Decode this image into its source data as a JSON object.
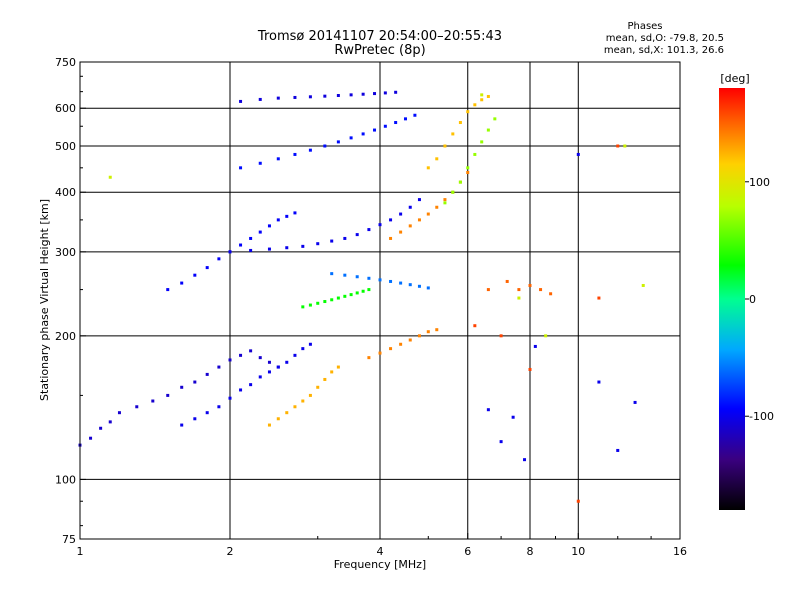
{
  "chart_data": {
    "type": "scatter",
    "title": "Tromsø 20141107 20:54:00–20:55:43",
    "subtitle": "RwPretec (8p)",
    "xlabel": "Frequency [MHz]",
    "ylabel": "Stationary phase Virtual Height [km]",
    "x_scale": "log",
    "y_scale": "log",
    "xlim": [
      1,
      16
    ],
    "ylim": [
      75,
      750
    ],
    "x_ticks": [
      1,
      2,
      4,
      6,
      8,
      10,
      16
    ],
    "y_ticks": [
      75,
      100,
      200,
      300,
      400,
      500,
      600,
      750
    ],
    "x_grid": [
      2,
      4,
      6,
      8,
      10
    ],
    "y_grid": [
      100,
      200,
      300,
      400,
      500,
      600
    ],
    "grid": true,
    "stats": {
      "heading": "Phases",
      "line1": "mean, sd,O: -79.8, 20.5",
      "line2": "mean, sd,X: 101.3, 26.6"
    },
    "colorbar": {
      "label": "[deg]",
      "range": [
        -180,
        180
      ],
      "ticks": [
        100,
        0,
        -100
      ],
      "colormap": "rainbow"
    },
    "series": [
      {
        "phase": -110,
        "points": [
          [
            1.0,
            118
          ],
          [
            1.05,
            122
          ],
          [
            1.1,
            128
          ],
          [
            1.15,
            132
          ],
          [
            1.2,
            138
          ],
          [
            1.3,
            142
          ],
          [
            1.4,
            146
          ],
          [
            1.5,
            150
          ],
          [
            1.6,
            156
          ],
          [
            1.7,
            160
          ],
          [
            1.8,
            166
          ],
          [
            1.9,
            172
          ],
          [
            2.0,
            178
          ],
          [
            2.1,
            182
          ],
          [
            2.2,
            186
          ],
          [
            2.3,
            180
          ],
          [
            2.4,
            176
          ],
          [
            2.5,
            172
          ]
        ]
      },
      {
        "phase": -100,
        "points": [
          [
            1.6,
            130
          ],
          [
            1.7,
            134
          ],
          [
            1.8,
            138
          ],
          [
            1.9,
            142
          ],
          [
            2.0,
            148
          ],
          [
            2.1,
            154
          ],
          [
            2.2,
            158
          ],
          [
            2.3,
            164
          ],
          [
            2.4,
            168
          ],
          [
            2.5,
            172
          ],
          [
            2.6,
            176
          ],
          [
            2.7,
            182
          ],
          [
            2.8,
            188
          ],
          [
            2.9,
            192
          ]
        ]
      },
      {
        "phase": -95,
        "points": [
          [
            1.5,
            250
          ],
          [
            1.6,
            258
          ],
          [
            1.7,
            268
          ],
          [
            1.8,
            278
          ],
          [
            1.9,
            290
          ],
          [
            2.0,
            300
          ],
          [
            2.1,
            310
          ],
          [
            2.2,
            320
          ],
          [
            2.3,
            330
          ],
          [
            2.4,
            340
          ],
          [
            2.5,
            350
          ],
          [
            2.6,
            356
          ],
          [
            2.7,
            362
          ]
        ]
      },
      {
        "phase": -100,
        "points": [
          [
            2.0,
            300
          ],
          [
            2.2,
            302
          ],
          [
            2.4,
            304
          ],
          [
            2.6,
            306
          ],
          [
            2.8,
            308
          ],
          [
            3.0,
            312
          ],
          [
            3.2,
            316
          ],
          [
            3.4,
            320
          ],
          [
            3.6,
            326
          ],
          [
            3.8,
            334
          ],
          [
            4.0,
            342
          ],
          [
            4.2,
            350
          ],
          [
            4.4,
            360
          ],
          [
            4.6,
            372
          ],
          [
            4.8,
            386
          ]
        ]
      },
      {
        "phase": -90,
        "points": [
          [
            2.1,
            450
          ],
          [
            2.3,
            460
          ],
          [
            2.5,
            470
          ],
          [
            2.7,
            480
          ],
          [
            2.9,
            490
          ],
          [
            3.1,
            500
          ],
          [
            3.3,
            510
          ],
          [
            3.5,
            520
          ],
          [
            3.7,
            530
          ],
          [
            3.9,
            540
          ],
          [
            4.1,
            550
          ],
          [
            4.3,
            560
          ],
          [
            4.5,
            570
          ],
          [
            4.7,
            580
          ]
        ]
      },
      {
        "phase": -105,
        "points": [
          [
            2.1,
            620
          ],
          [
            2.3,
            626
          ],
          [
            2.5,
            630
          ],
          [
            2.7,
            632
          ],
          [
            2.9,
            634
          ],
          [
            3.1,
            636
          ],
          [
            3.3,
            638
          ],
          [
            3.5,
            640
          ],
          [
            3.7,
            642
          ],
          [
            3.9,
            644
          ],
          [
            4.1,
            646
          ],
          [
            4.3,
            648
          ]
        ]
      },
      {
        "phase": -60,
        "points": [
          [
            3.2,
            270
          ],
          [
            3.4,
            268
          ],
          [
            3.6,
            266
          ],
          [
            3.8,
            264
          ],
          [
            4.0,
            262
          ],
          [
            4.2,
            260
          ],
          [
            4.4,
            258
          ],
          [
            4.6,
            256
          ],
          [
            4.8,
            254
          ],
          [
            5.0,
            252
          ]
        ]
      },
      {
        "phase": 30,
        "points": [
          [
            2.8,
            230
          ],
          [
            2.9,
            232
          ],
          [
            3.0,
            234
          ],
          [
            3.1,
            236
          ],
          [
            3.2,
            238
          ],
          [
            3.3,
            240
          ],
          [
            3.4,
            242
          ],
          [
            3.5,
            244
          ],
          [
            3.6,
            246
          ],
          [
            3.7,
            248
          ],
          [
            3.8,
            250
          ]
        ]
      },
      {
        "phase": 125,
        "points": [
          [
            2.4,
            130
          ],
          [
            2.5,
            134
          ],
          [
            2.6,
            138
          ],
          [
            2.7,
            142
          ],
          [
            2.8,
            146
          ],
          [
            2.9,
            150
          ],
          [
            3.0,
            156
          ],
          [
            3.1,
            162
          ],
          [
            3.2,
            168
          ],
          [
            3.3,
            172
          ]
        ]
      },
      {
        "phase": 140,
        "points": [
          [
            3.8,
            180
          ],
          [
            4.0,
            184
          ],
          [
            4.2,
            188
          ],
          [
            4.4,
            192
          ],
          [
            4.6,
            196
          ],
          [
            4.8,
            200
          ],
          [
            5.0,
            204
          ],
          [
            5.2,
            206
          ]
        ]
      },
      {
        "phase": 140,
        "points": [
          [
            4.2,
            320
          ],
          [
            4.4,
            330
          ],
          [
            4.6,
            340
          ],
          [
            4.8,
            350
          ],
          [
            5.0,
            360
          ],
          [
            5.2,
            372
          ],
          [
            5.4,
            386
          ],
          [
            5.6,
            400
          ],
          [
            5.8,
            420
          ],
          [
            6.0,
            440
          ]
        ]
      },
      {
        "phase": 120,
        "points": [
          [
            5.0,
            450
          ],
          [
            5.2,
            470
          ],
          [
            5.4,
            500
          ],
          [
            5.6,
            530
          ],
          [
            5.8,
            560
          ],
          [
            6.0,
            590
          ],
          [
            6.2,
            610
          ],
          [
            6.4,
            625
          ],
          [
            6.6,
            635
          ]
        ]
      },
      {
        "phase": 70,
        "points": [
          [
            5.4,
            380
          ],
          [
            5.6,
            400
          ],
          [
            5.8,
            420
          ],
          [
            6.0,
            450
          ],
          [
            6.2,
            480
          ],
          [
            6.4,
            510
          ],
          [
            6.6,
            540
          ],
          [
            6.8,
            570
          ]
        ]
      },
      {
        "phase": 150,
        "points": [
          [
            6.6,
            250
          ],
          [
            7.2,
            260
          ],
          [
            7.6,
            250
          ],
          [
            8.0,
            255
          ],
          [
            8.4,
            250
          ],
          [
            8.8,
            245
          ]
        ]
      },
      {
        "phase": -100,
        "points": [
          [
            6.6,
            140
          ],
          [
            7.0,
            120
          ],
          [
            7.4,
            135
          ],
          [
            7.8,
            110
          ],
          [
            8.2,
            190
          ],
          [
            10.0,
            480
          ],
          [
            11.0,
            160
          ],
          [
            12.0,
            115
          ],
          [
            13.0,
            145
          ]
        ]
      },
      {
        "phase": 160,
        "points": [
          [
            6.2,
            210
          ],
          [
            7.0,
            200
          ],
          [
            8.0,
            170
          ],
          [
            10.0,
            90
          ],
          [
            11.0,
            240
          ],
          [
            12.0,
            500
          ]
        ]
      },
      {
        "phase": 90,
        "points": [
          [
            1.15,
            430
          ],
          [
            6.4,
            640
          ],
          [
            7.6,
            240
          ],
          [
            8.6,
            200
          ],
          [
            12.4,
            500
          ],
          [
            13.5,
            255
          ]
        ]
      }
    ]
  }
}
